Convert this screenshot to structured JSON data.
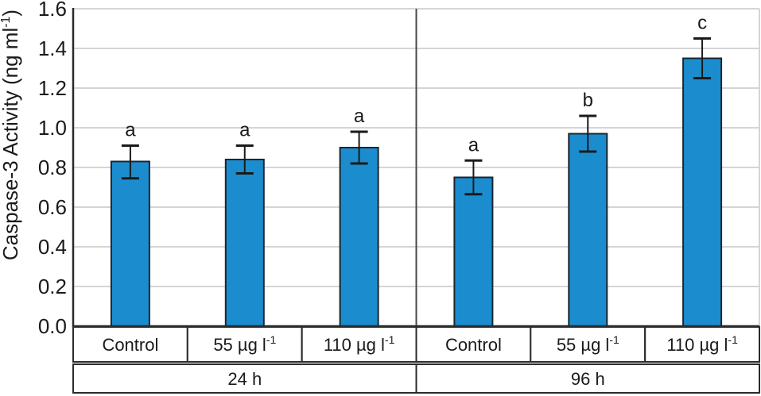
{
  "figure": {
    "background": "#ffffff"
  },
  "chart_data": {
    "type": "bar",
    "title": "",
    "xlabel": "",
    "ylabel": {
      "text": "Caspase-3 Activity (ng ml",
      "sup": "-1",
      "tail": ")"
    },
    "ylim": [
      0,
      1.6
    ],
    "ytick_step": 0.2,
    "ytick_labels": [
      "0.0",
      "0.2",
      "0.4",
      "0.6",
      "0.8",
      "1.0",
      "1.2",
      "1.4",
      "1.6"
    ],
    "grid": true,
    "legend": false,
    "colors": {
      "bar_fill": "#1b8dce",
      "bar_border": "#1a2631",
      "grid": "#d5d5d5",
      "axis": "#2b2b2b",
      "box_border": "#2b2b2b",
      "divider": "#4a4a4a",
      "error_bar": "#1a1a1a",
      "text": "#1a1a1a"
    },
    "groups": [
      {
        "label": "24 h",
        "bars": [
          {
            "label": "Control",
            "sup": "",
            "value": 0.83,
            "err_up": 0.08,
            "err_down": 0.085,
            "letter": "a"
          },
          {
            "label": "55 µg l",
            "sup": "-1",
            "value": 0.84,
            "err_up": 0.07,
            "err_down": 0.07,
            "letter": "a"
          },
          {
            "label": "110 µg l",
            "sup": "-1",
            "value": 0.9,
            "err_up": 0.08,
            "err_down": 0.08,
            "letter": "a"
          }
        ]
      },
      {
        "label": "96 h",
        "bars": [
          {
            "label": "Control",
            "sup": "",
            "value": 0.75,
            "err_up": 0.085,
            "err_down": 0.085,
            "letter": "a"
          },
          {
            "label": "55 µg l",
            "sup": "-1",
            "value": 0.97,
            "err_up": 0.09,
            "err_down": 0.09,
            "letter": "b"
          },
          {
            "label": "110 µg l",
            "sup": "-1",
            "value": 1.35,
            "err_up": 0.1,
            "err_down": 0.1,
            "letter": "c"
          }
        ]
      }
    ]
  }
}
